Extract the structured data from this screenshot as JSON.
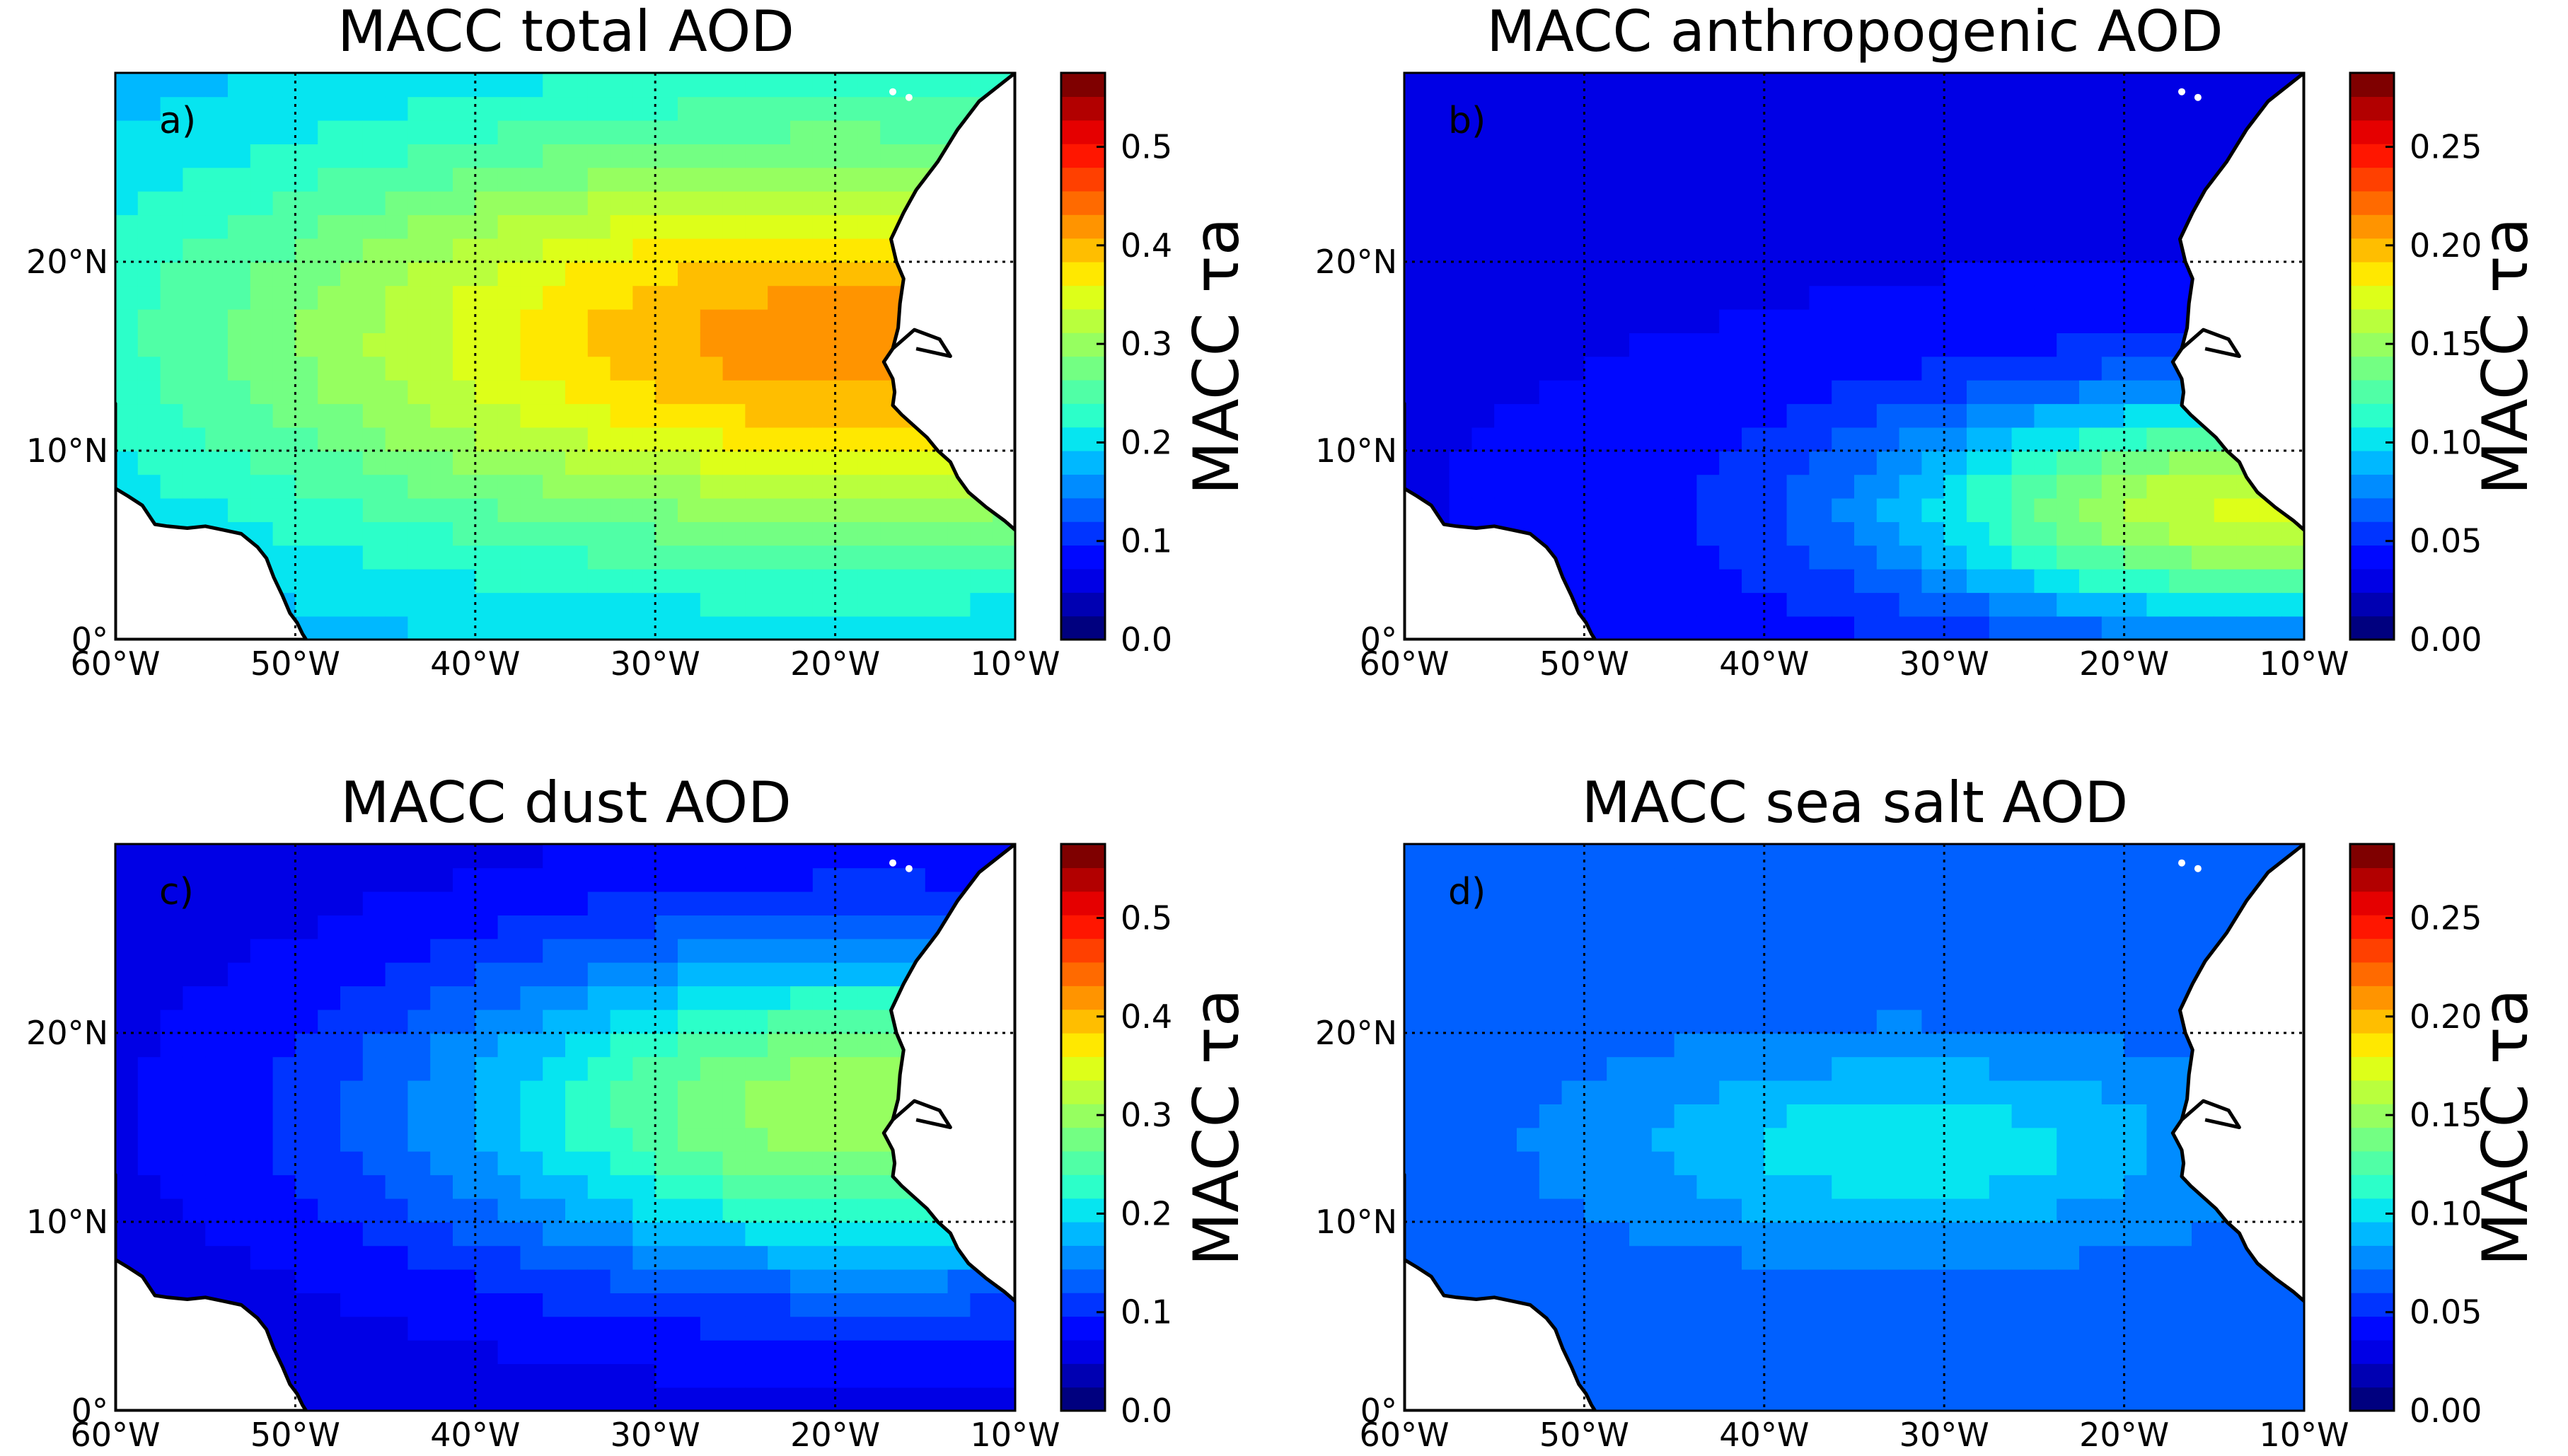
{
  "colormap": [
    "#00007f",
    "#0000b2",
    "#0000e5",
    "#0008ff",
    "#0034ff",
    "#0060ff",
    "#008cff",
    "#00b8ff",
    "#06e5f0",
    "#2cffc9",
    "#50ffa6",
    "#73ff83",
    "#96ff60",
    "#b9ff3d",
    "#ddff19",
    "#ffe800",
    "#ffbe00",
    "#ff9400",
    "#ff6a00",
    "#ff4000",
    "#ff1600",
    "#e50000",
    "#b20000",
    "#7f0000"
  ],
  "chart_data": [
    {
      "type": "heatmap",
      "panel": "a)",
      "title": "MACC total AOD",
      "xlabel": "",
      "ylabel": "",
      "x_ticks": [
        "60°W",
        "50°W",
        "40°W",
        "30°W",
        "20°W",
        "10°W"
      ],
      "y_ticks": [
        "0°",
        "10°N",
        "20°N"
      ],
      "xlim": [
        -60,
        -10
      ],
      "ylim": [
        0,
        30
      ],
      "colorbar": {
        "label": "MACC τa",
        "range": [
          0,
          0.575
        ],
        "ticks": [
          "0.0",
          "0.1",
          "0.2",
          "0.3",
          "0.4",
          "0.5"
        ]
      },
      "field": {
        "peak": 0.42,
        "peak_lon": -20,
        "peak_lat": 16,
        "background": 0.17,
        "lon_scale": 34,
        "lat_scale": 11
      }
    },
    {
      "type": "heatmap",
      "panel": "b)",
      "title": "MACC anthropogenic AOD",
      "xlabel": "",
      "ylabel": "",
      "x_ticks": [
        "60°W",
        "50°W",
        "40°W",
        "30°W",
        "20°W",
        "10°W"
      ],
      "y_ticks": [
        "0°",
        "10°N",
        "20°N"
      ],
      "xlim": [
        -60,
        -10
      ],
      "ylim": [
        0,
        30
      ],
      "colorbar": {
        "label": "MACC τa",
        "range": [
          0,
          0.2875
        ],
        "ticks": [
          "0.00",
          "0.05",
          "0.10",
          "0.15",
          "0.20",
          "0.25"
        ]
      },
      "field": {
        "peak": 0.17,
        "peak_lon": -13,
        "peak_lat": 7,
        "background": 0.035,
        "lon_scale": 20,
        "lat_scale": 6
      }
    },
    {
      "type": "heatmap",
      "panel": "c)",
      "title": "MACC dust AOD",
      "xlabel": "",
      "ylabel": "",
      "x_ticks": [
        "60°W",
        "50°W",
        "40°W",
        "30°W",
        "20°W",
        "10°W"
      ],
      "y_ticks": [
        "0°",
        "10°N",
        "20°N"
      ],
      "xlim": [
        -60,
        -10
      ],
      "ylim": [
        0,
        30
      ],
      "colorbar": {
        "label": "MACC τa",
        "range": [
          0,
          0.575
        ],
        "ticks": [
          "0.0",
          "0.1",
          "0.2",
          "0.3",
          "0.4",
          "0.5"
        ]
      },
      "field": {
        "peak": 0.31,
        "peak_lon": -18,
        "peak_lat": 16,
        "background": 0.055,
        "lon_scale": 25,
        "lat_scale": 9
      }
    },
    {
      "type": "heatmap",
      "panel": "d)",
      "title": "MACC sea salt AOD",
      "xlabel": "",
      "ylabel": "",
      "x_ticks": [
        "60°W",
        "50°W",
        "40°W",
        "30°W",
        "20°W",
        "10°W"
      ],
      "y_ticks": [
        "0°",
        "10°N",
        "20°N"
      ],
      "xlim": [
        -60,
        -10
      ],
      "ylim": [
        0,
        30
      ],
      "colorbar": {
        "label": "MACC τa",
        "range": [
          0,
          0.2875
        ],
        "ticks": [
          "0.00",
          "0.05",
          "0.10",
          "0.15",
          "0.20",
          "0.25"
        ]
      },
      "field": {
        "peak": 0.105,
        "peak_lon": -32,
        "peak_lat": 14,
        "background": 0.065,
        "lon_scale": 16,
        "lat_scale": 5
      }
    }
  ]
}
